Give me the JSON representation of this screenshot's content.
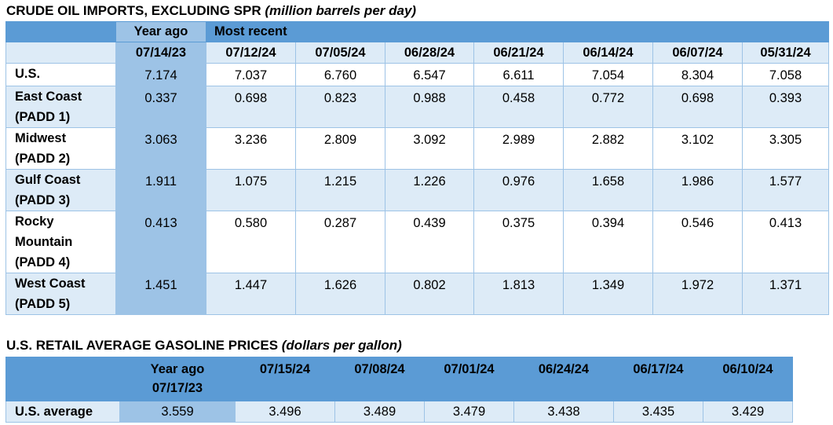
{
  "crude": {
    "title": "CRUDE OIL IMPORTS, EXCLUDING SPR",
    "unit": "(million barrels per day)",
    "year_ago_label": "Year ago",
    "most_recent_label": "Most recent",
    "year_ago_date": "07/14/23",
    "dates": [
      "07/12/24",
      "07/05/24",
      "06/28/24",
      "06/21/24",
      "06/14/24",
      "06/07/24",
      "05/31/24"
    ],
    "rows": [
      {
        "line1": "U.S.",
        "line2": "",
        "line3": "",
        "year_ago": "7.174",
        "values": [
          "7.037",
          "6.760",
          "6.547",
          "6.611",
          "7.054",
          "8.304",
          "7.058"
        ]
      },
      {
        "line1": "East Coast",
        "line2": "(PADD 1)",
        "line3": "",
        "year_ago": "0.337",
        "values": [
          "0.698",
          "0.823",
          "0.988",
          "0.458",
          "0.772",
          "0.698",
          "0.393"
        ]
      },
      {
        "line1": "Midwest",
        "line2": "(PADD 2)",
        "line3": "",
        "year_ago": "3.063",
        "values": [
          "3.236",
          "2.809",
          "3.092",
          "2.989",
          "2.882",
          "3.102",
          "3.305"
        ]
      },
      {
        "line1": "Gulf Coast",
        "line2": "(PADD 3)",
        "line3": "",
        "year_ago": "1.911",
        "values": [
          "1.075",
          "1.215",
          "1.226",
          "0.976",
          "1.658",
          "1.986",
          "1.577"
        ]
      },
      {
        "line1": "Rocky",
        "line2": "Mountain",
        "line3": "(PADD 4)",
        "year_ago": "0.413",
        "values": [
          "0.580",
          "0.287",
          "0.439",
          "0.375",
          "0.394",
          "0.546",
          "0.413"
        ]
      },
      {
        "line1": "West Coast",
        "line2": "(PADD 5)",
        "line3": "",
        "year_ago": "1.451",
        "values": [
          "1.447",
          "1.626",
          "0.802",
          "1.813",
          "1.349",
          "1.972",
          "1.371"
        ]
      }
    ]
  },
  "gasoline": {
    "title": "U.S. RETAIL AVERAGE GASOLINE PRICES",
    "unit": "(dollars per gallon)",
    "year_ago_label": "Year ago",
    "year_ago_date": "07/17/23",
    "dates": [
      "07/15/24",
      "07/08/24",
      "07/01/24",
      "06/24/24",
      "06/17/24",
      "06/10/24"
    ],
    "row_label": "U.S. average",
    "year_ago_value": "3.559",
    "values": [
      "3.496",
      "3.489",
      "3.479",
      "3.438",
      "3.435",
      "3.429"
    ]
  }
}
